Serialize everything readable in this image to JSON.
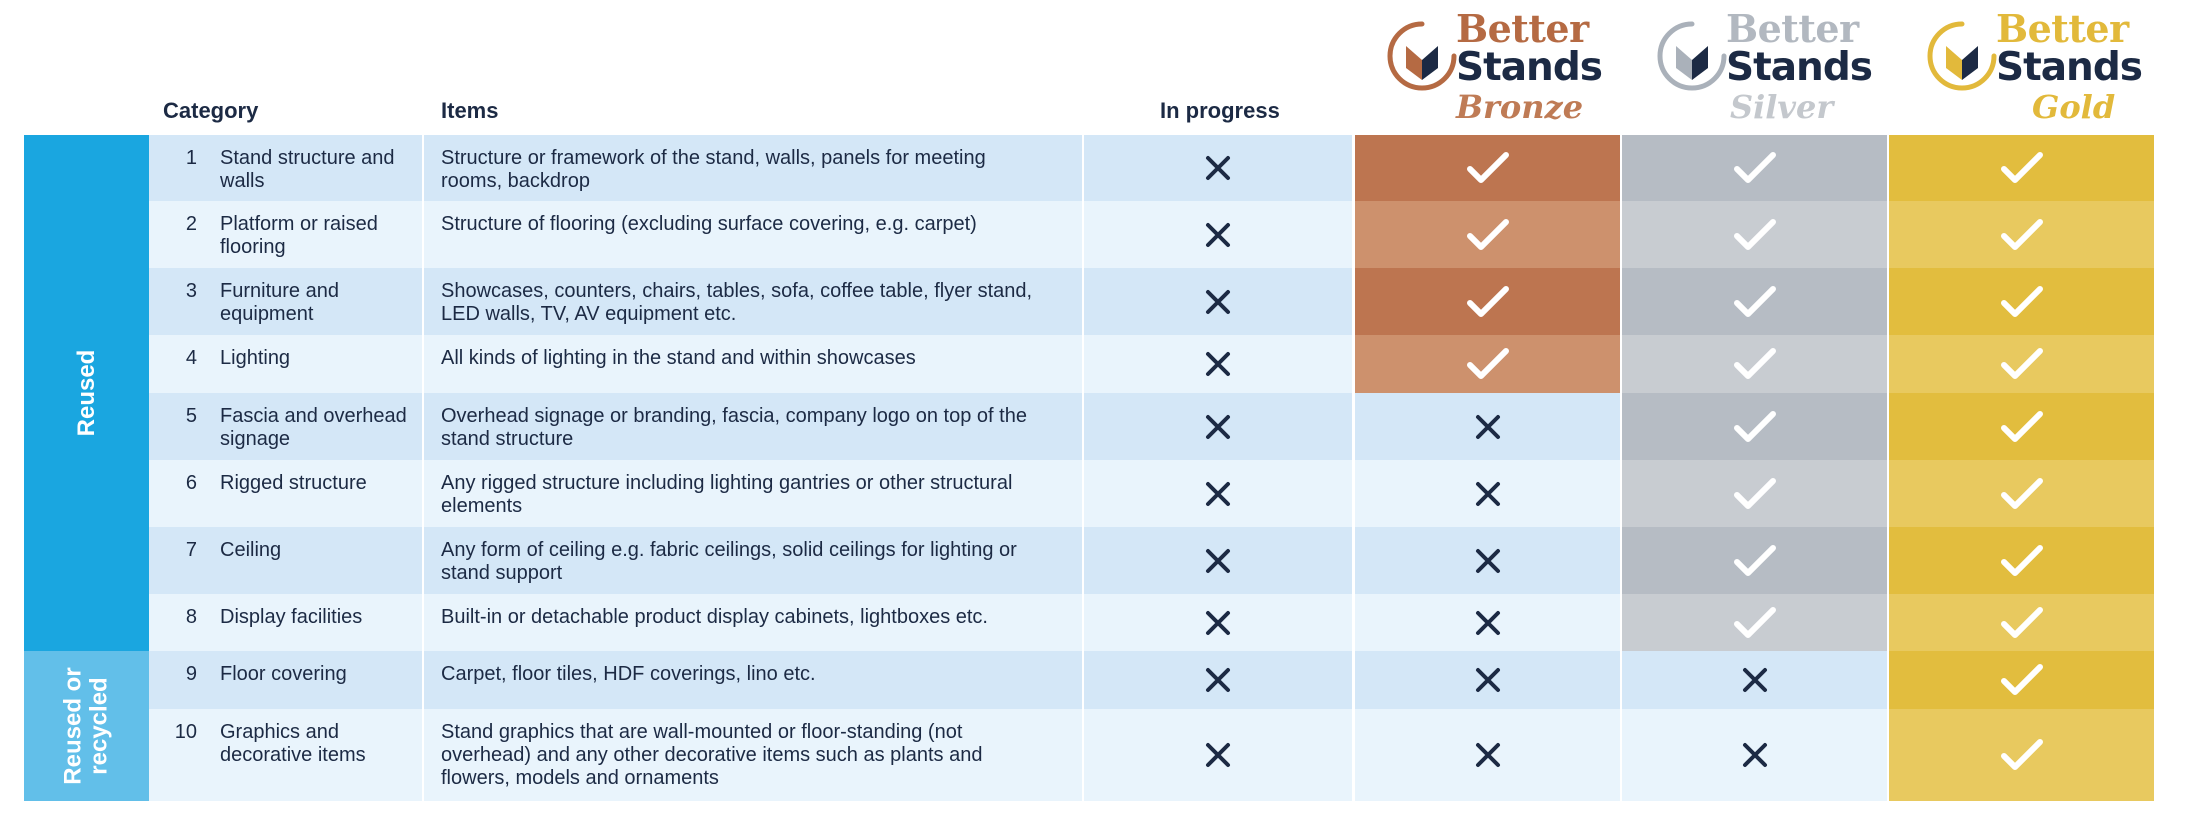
{
  "logos": [
    {
      "word1": "Better",
      "word2": "Stands",
      "tier": "Bronze",
      "color": "#b56a43",
      "tierColor": "#bf7b55",
      "markColor": "#b56a43"
    },
    {
      "word1": "Better",
      "word2": "Stands",
      "tier": "Silver",
      "color": "#b2b8c0",
      "tierColor": "#c4c8cd",
      "markColor": "#aab1ba"
    },
    {
      "word1": "Better",
      "word2": "Stands",
      "tier": "Gold",
      "color": "#e2b93b",
      "tierColor": "#e2b93b",
      "markColor": "#e2b93b"
    }
  ],
  "headers": {
    "category": "Category",
    "items": "Items",
    "in_progress": "In progress"
  },
  "groups": [
    {
      "label": "Reused",
      "color": "#1aa6e0"
    },
    {
      "label": "Reused or recycled",
      "color": "#62bfe9"
    }
  ],
  "rows": [
    {
      "num": "1",
      "category": "Stand structure and walls",
      "items": "Structure or framework of the stand, walls, panels for meeting rooms, backdrop",
      "in_progress": "x",
      "bronze": "check",
      "silver": "check",
      "gold": "check"
    },
    {
      "num": "2",
      "category": "Platform or raised flooring",
      "items": "Structure of flooring (excluding surface covering, e.g. carpet)",
      "in_progress": "x",
      "bronze": "check",
      "silver": "check",
      "gold": "check"
    },
    {
      "num": "3",
      "category": "Furniture and equipment",
      "items": "Showcases, counters, chairs, tables, sofa, coffee table, flyer stand, LED walls, TV, AV equipment etc.",
      "in_progress": "x",
      "bronze": "check",
      "silver": "check",
      "gold": "check"
    },
    {
      "num": "4",
      "category": "Lighting",
      "items": "All kinds of lighting in the stand and within showcases",
      "in_progress": "x",
      "bronze": "check",
      "silver": "check",
      "gold": "check"
    },
    {
      "num": "5",
      "category": "Fascia and overhead signage",
      "items": "Overhead signage or branding, fascia, company logo on top of the stand structure",
      "in_progress": "x",
      "bronze": "x",
      "silver": "check",
      "gold": "check"
    },
    {
      "num": "6",
      "category": "Rigged structure",
      "items": "Any rigged structure including lighting gantries or other structural elements",
      "in_progress": "x",
      "bronze": "x",
      "silver": "check",
      "gold": "check"
    },
    {
      "num": "7",
      "category": "Ceiling",
      "items": "Any form of ceiling e.g. fabric ceilings, solid ceilings for lighting or stand support",
      "in_progress": "x",
      "bronze": "x",
      "silver": "check",
      "gold": "check"
    },
    {
      "num": "8",
      "category": "Display facilities",
      "items": "Built-in or detachable product display cabinets, lightboxes etc.",
      "in_progress": "x",
      "bronze": "x",
      "silver": "check",
      "gold": "check"
    },
    {
      "num": "9",
      "category": "Floor covering",
      "items": "Carpet, floor tiles, HDF coverings, lino etc.",
      "in_progress": "x",
      "bronze": "x",
      "silver": "x",
      "gold": "check"
    },
    {
      "num": "10",
      "category": "Graphics and decorative items",
      "items": "Stand graphics that are wall-mounted or floor-standing (not overhead) and any other decorative items such as plants and flowers, models and ornaments",
      "in_progress": "x",
      "bronze": "x",
      "silver": "x",
      "gold": "check"
    }
  ],
  "colors": {
    "rowDark": "#d4e7f7",
    "rowLight": "#e9f4fc",
    "bronzeDark": "#bd7550",
    "bronzeLight": "#cd916d",
    "silverDark": "#b6bcc4",
    "silverLight": "#c8ccd1",
    "goldDark": "#e2bd3e",
    "goldLight": "#e8c95f",
    "xMark": "#1c2a44",
    "check": "#ffffff"
  }
}
